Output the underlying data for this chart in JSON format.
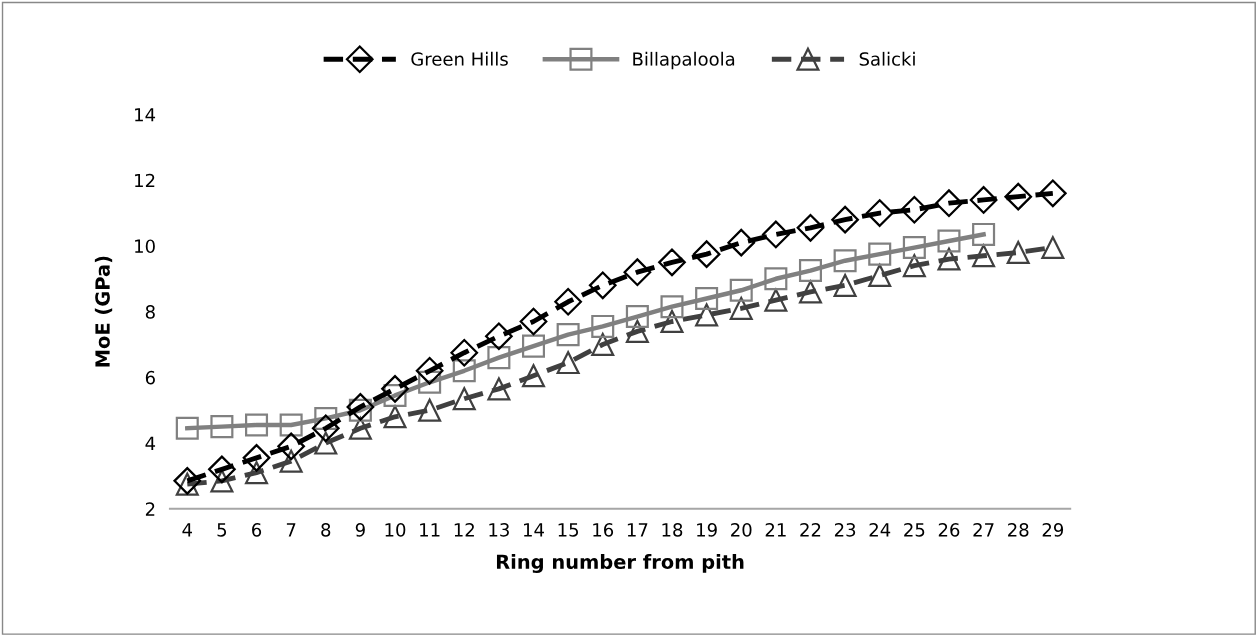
{
  "chart_data": {
    "type": "line",
    "xlabel": "Ring number from pith",
    "ylabel": "MoE (GPa)",
    "categories": [
      "4",
      "5",
      "6",
      "7",
      "8",
      "9",
      "10",
      "11",
      "12",
      "13",
      "14",
      "15",
      "16",
      "17",
      "18",
      "19",
      "20",
      "21",
      "22",
      "23",
      "24",
      "25",
      "26",
      "27",
      "28",
      "29"
    ],
    "series": [
      {
        "name": "Green Hills",
        "color": "#000000",
        "marker": "diamond",
        "line_style": "dashed",
        "values": [
          2.85,
          3.2,
          3.55,
          3.9,
          4.45,
          5.1,
          5.65,
          6.2,
          6.75,
          7.25,
          7.7,
          8.3,
          8.8,
          9.2,
          9.5,
          9.75,
          10.1,
          10.35,
          10.55,
          10.8,
          11.0,
          11.1,
          11.3,
          11.4,
          11.5,
          11.6
        ]
      },
      {
        "name": "Billapaloola",
        "color": "#808080",
        "marker": "square",
        "line_style": "solid",
        "values": [
          4.45,
          4.5,
          4.55,
          4.55,
          4.75,
          5.0,
          5.45,
          5.85,
          6.2,
          6.6,
          6.95,
          7.3,
          7.55,
          7.85,
          8.15,
          8.4,
          8.65,
          9.0,
          9.25,
          9.55,
          9.75,
          9.95,
          10.15,
          10.35,
          null,
          null
        ]
      },
      {
        "name": "Salicki",
        "color": "#404040",
        "marker": "triangle",
        "line_style": "dashed",
        "values": [
          2.75,
          2.85,
          3.1,
          3.45,
          4.0,
          4.45,
          4.8,
          5.0,
          5.35,
          5.65,
          6.05,
          6.45,
          7.0,
          7.4,
          7.7,
          7.9,
          8.1,
          8.35,
          8.6,
          8.8,
          9.1,
          9.4,
          9.6,
          9.7,
          9.8,
          9.95
        ]
      }
    ],
    "ylim": [
      2,
      14
    ],
    "yticks": [
      2,
      4,
      6,
      8,
      10,
      12,
      14
    ],
    "grid": false,
    "legend": "top"
  }
}
